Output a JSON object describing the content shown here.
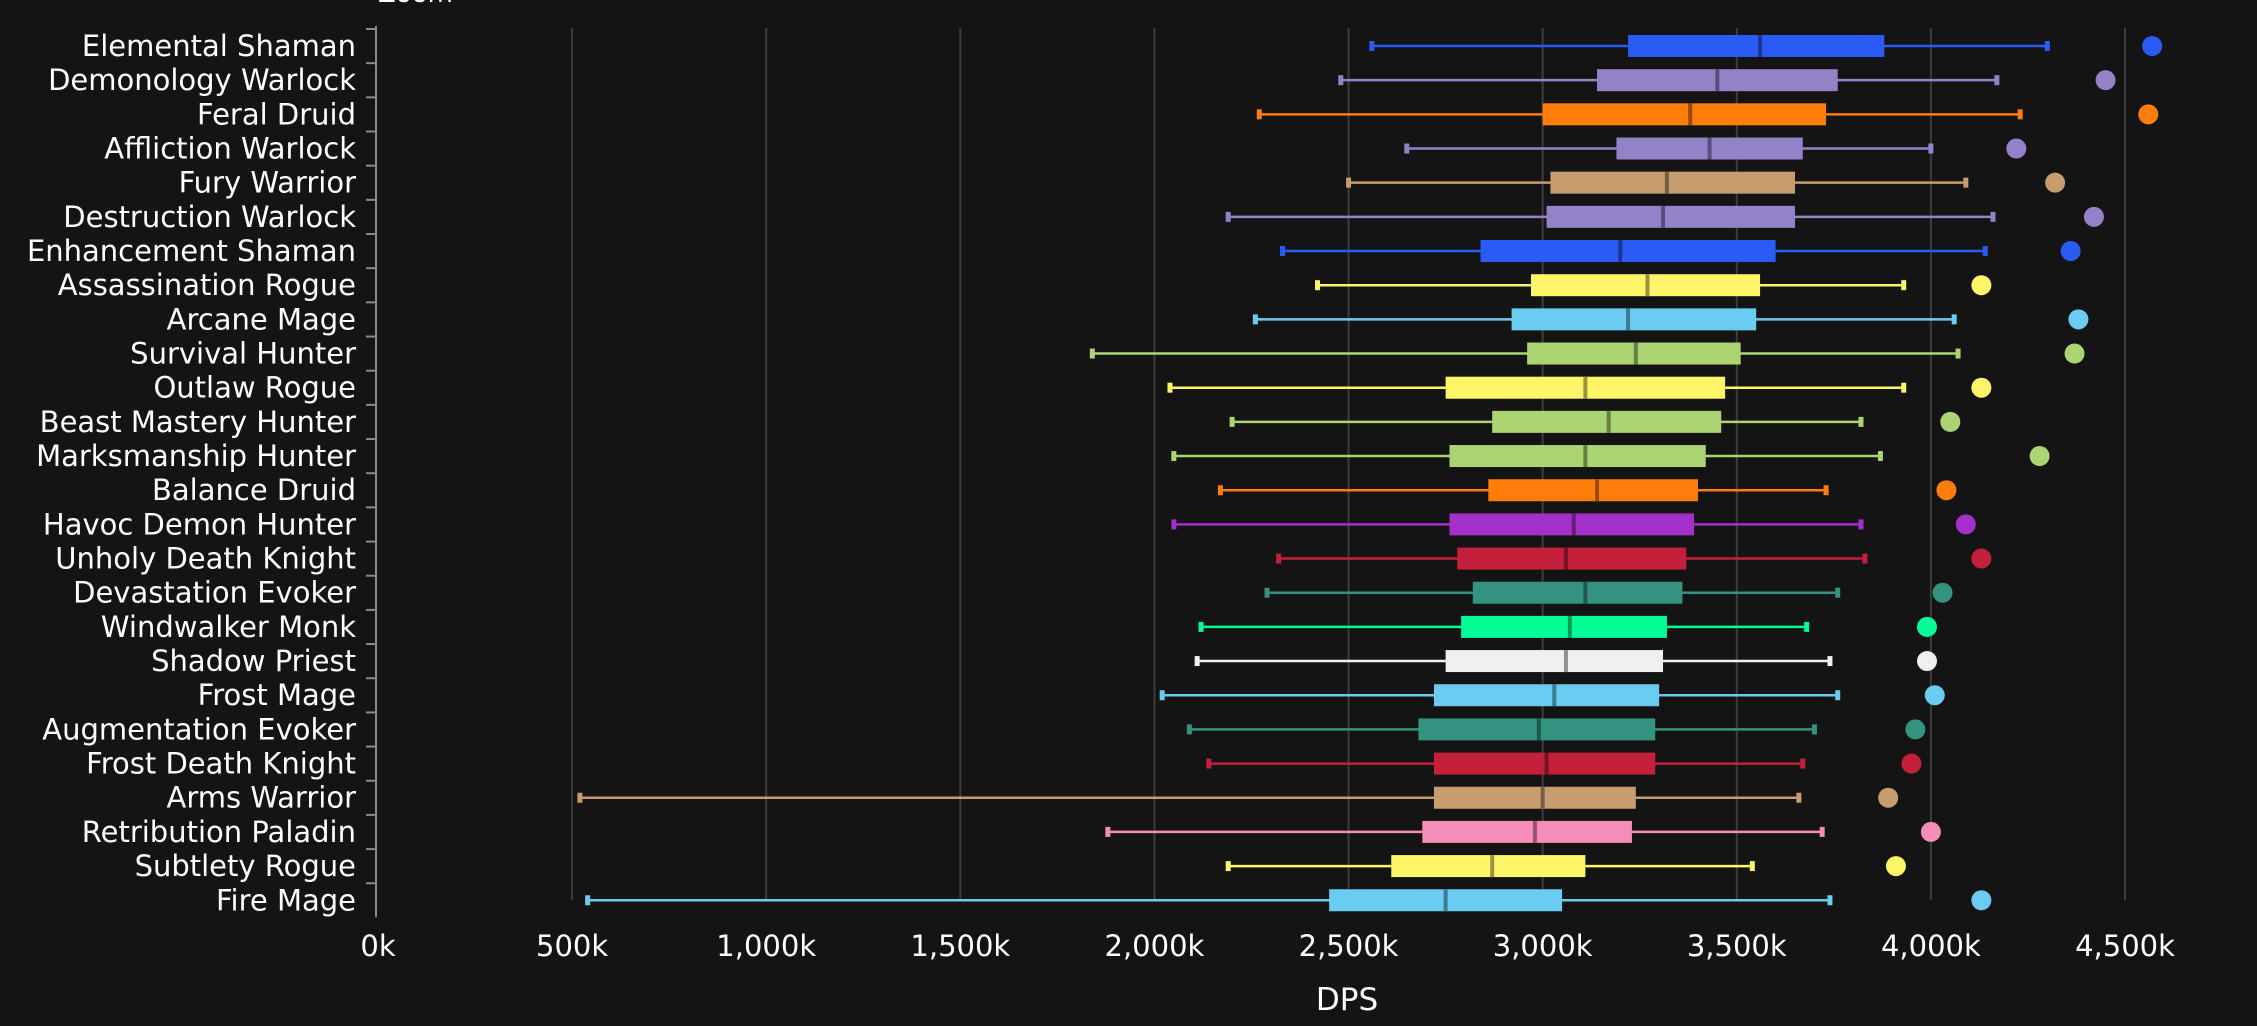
{
  "chart_data": {
    "type": "boxplot",
    "top_cutoff_label": "Zoom",
    "xlabel": "DPS",
    "xlim": [
      0,
      4500
    ],
    "x_unit": "k",
    "xticks": [
      0,
      500,
      1000,
      1500,
      2000,
      2500,
      3000,
      3500,
      4000,
      4500
    ],
    "xtick_labels": [
      "0k",
      "500k",
      "1,000k",
      "1,500k",
      "2,000k",
      "2,500k",
      "3,000k",
      "3,500k",
      "4,000k",
      "4,500k"
    ],
    "grid": true,
    "series": [
      {
        "name": "Elemental Shaman",
        "color": "#2a5cf5",
        "min": 2560,
        "q1": 3220,
        "median": 3560,
        "q3": 3880,
        "max": 4300,
        "outlier": 4570
      },
      {
        "name": "Demonology Warlock",
        "color": "#9482c9",
        "min": 2480,
        "q1": 3140,
        "median": 3450,
        "q3": 3760,
        "max": 4170,
        "outlier": 4450
      },
      {
        "name": "Feral Druid",
        "color": "#ff7d0a",
        "min": 2270,
        "q1": 3000,
        "median": 3380,
        "q3": 3730,
        "max": 4230,
        "outlier": 4560
      },
      {
        "name": "Affliction Warlock",
        "color": "#9482c9",
        "min": 2650,
        "q1": 3190,
        "median": 3430,
        "q3": 3670,
        "max": 4000,
        "outlier": 4220
      },
      {
        "name": "Fury Warrior",
        "color": "#c79c6e",
        "min": 2500,
        "q1": 3020,
        "median": 3320,
        "q3": 3650,
        "max": 4090,
        "outlier": 4320
      },
      {
        "name": "Destruction Warlock",
        "color": "#9482c9",
        "min": 2190,
        "q1": 3010,
        "median": 3310,
        "q3": 3650,
        "max": 4160,
        "outlier": 4420
      },
      {
        "name": "Enhancement Shaman",
        "color": "#2a5cf5",
        "min": 2330,
        "q1": 2840,
        "median": 3200,
        "q3": 3600,
        "max": 4140,
        "outlier": 4360
      },
      {
        "name": "Assassination Rogue",
        "color": "#fff569",
        "min": 2420,
        "q1": 2970,
        "median": 3270,
        "q3": 3560,
        "max": 3930,
        "outlier": 4130
      },
      {
        "name": "Arcane Mage",
        "color": "#69ccf0",
        "min": 2260,
        "q1": 2920,
        "median": 3220,
        "q3": 3550,
        "max": 4060,
        "outlier": 4380
      },
      {
        "name": "Survival Hunter",
        "color": "#abd473",
        "min": 1840,
        "q1": 2960,
        "median": 3240,
        "q3": 3510,
        "max": 4070,
        "outlier": 4370
      },
      {
        "name": "Outlaw Rogue",
        "color": "#fff569",
        "min": 2040,
        "q1": 2750,
        "median": 3110,
        "q3": 3470,
        "max": 3930,
        "outlier": 4130
      },
      {
        "name": "Beast Mastery Hunter",
        "color": "#abd473",
        "min": 2200,
        "q1": 2870,
        "median": 3170,
        "q3": 3460,
        "max": 3820,
        "outlier": 4050
      },
      {
        "name": "Marksmanship Hunter",
        "color": "#abd473",
        "min": 2050,
        "q1": 2760,
        "median": 3110,
        "q3": 3420,
        "max": 3870,
        "outlier": 4280
      },
      {
        "name": "Balance Druid",
        "color": "#ff7d0a",
        "min": 2170,
        "q1": 2860,
        "median": 3140,
        "q3": 3400,
        "max": 3730,
        "outlier": 4040
      },
      {
        "name": "Havoc Demon Hunter",
        "color": "#a330c9",
        "min": 2050,
        "q1": 2760,
        "median": 3080,
        "q3": 3390,
        "max": 3820,
        "outlier": 4090
      },
      {
        "name": "Unholy Death Knight",
        "color": "#c41f3b",
        "min": 2320,
        "q1": 2780,
        "median": 3060,
        "q3": 3370,
        "max": 3830,
        "outlier": 4130
      },
      {
        "name": "Devastation Evoker",
        "color": "#33937f",
        "min": 2290,
        "q1": 2820,
        "median": 3110,
        "q3": 3360,
        "max": 3760,
        "outlier": 4030
      },
      {
        "name": "Windwalker Monk",
        "color": "#00ff96",
        "min": 2120,
        "q1": 2790,
        "median": 3070,
        "q3": 3320,
        "max": 3680,
        "outlier": 3990
      },
      {
        "name": "Shadow Priest",
        "color": "#f0f0f0",
        "min": 2110,
        "q1": 2750,
        "median": 3060,
        "q3": 3310,
        "max": 3740,
        "outlier": 3990
      },
      {
        "name": "Frost Mage",
        "color": "#69ccf0",
        "min": 2020,
        "q1": 2720,
        "median": 3030,
        "q3": 3300,
        "max": 3760,
        "outlier": 4010
      },
      {
        "name": "Augmentation Evoker",
        "color": "#33937f",
        "min": 2090,
        "q1": 2680,
        "median": 2990,
        "q3": 3290,
        "max": 3700,
        "outlier": 3960
      },
      {
        "name": "Frost Death Knight",
        "color": "#c41f3b",
        "min": 2140,
        "q1": 2720,
        "median": 3010,
        "q3": 3290,
        "max": 3670,
        "outlier": 3950
      },
      {
        "name": "Arms Warrior",
        "color": "#c79c6e",
        "min": 520,
        "q1": 2720,
        "median": 3000,
        "q3": 3240,
        "max": 3660,
        "outlier": 3890
      },
      {
        "name": "Retribution Paladin",
        "color": "#f58cba",
        "min": 1880,
        "q1": 2690,
        "median": 2980,
        "q3": 3230,
        "max": 3720,
        "outlier": 4000
      },
      {
        "name": "Subtlety Rogue",
        "color": "#fff569",
        "min": 2190,
        "q1": 2610,
        "median": 2870,
        "q3": 3110,
        "max": 3540,
        "outlier": 3910
      },
      {
        "name": "Fire Mage",
        "color": "#69ccf0",
        "min": 540,
        "q1": 2450,
        "median": 2750,
        "q3": 3050,
        "max": 3740,
        "outlier": 4130
      }
    ]
  }
}
